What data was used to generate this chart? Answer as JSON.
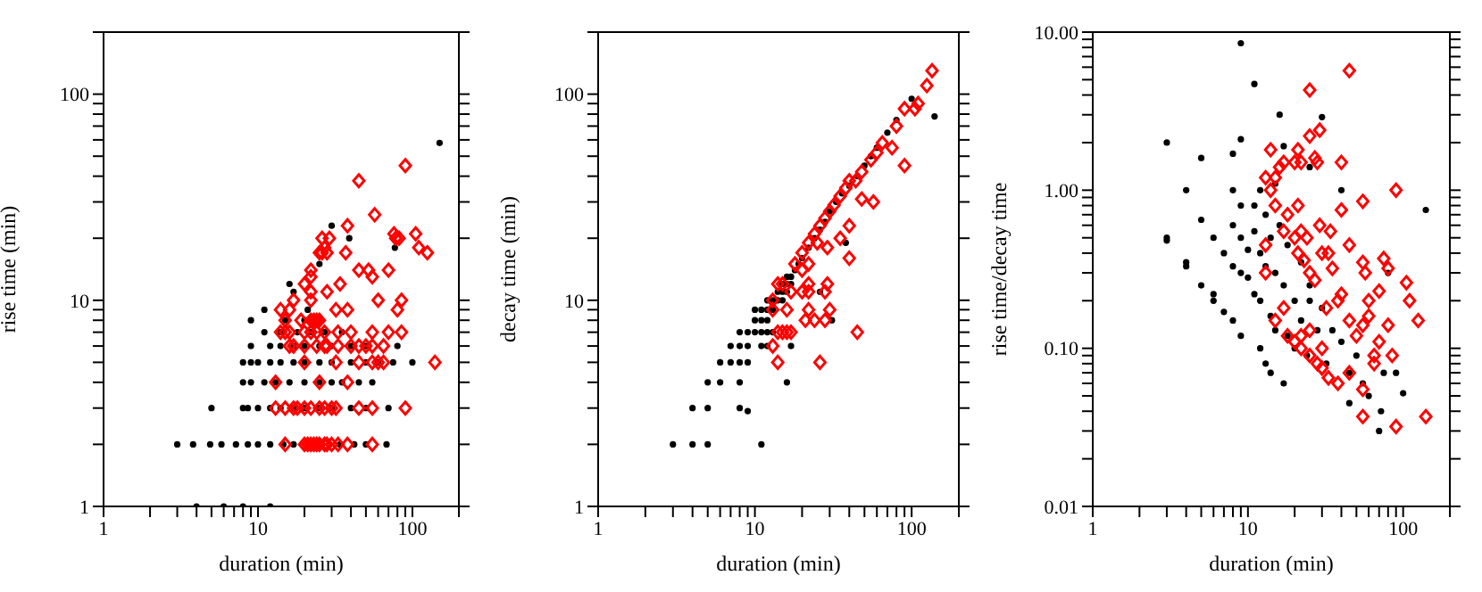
{
  "chart_data": [
    {
      "type": "scatter",
      "xlabel": "duration (min)",
      "ylabel": "rise time (min)",
      "log": "xy",
      "xlim": [
        1,
        200
      ],
      "ylim": [
        1,
        200
      ],
      "xticks": [
        1,
        {
          "value": 2,
          "label": null
        },
        {
          "value": 3,
          "label": null
        },
        {
          "value": 4,
          "label": null
        },
        {
          "value": 5,
          "label": null
        },
        {
          "value": 6,
          "label": null
        },
        {
          "value": 7,
          "label": null
        },
        {
          "value": 8,
          "label": null
        },
        {
          "value": 9,
          "label": null
        },
        10,
        {
          "value": 20,
          "label": null
        },
        {
          "value": 30,
          "label": null
        },
        {
          "value": 40,
          "label": null
        },
        {
          "value": 50,
          "label": null
        },
        {
          "value": 60,
          "label": null
        },
        {
          "value": 70,
          "label": null
        },
        {
          "value": 80,
          "label": null
        },
        {
          "value": 90,
          "label": null
        },
        100,
        {
          "value": 200,
          "label": null
        }
      ],
      "yticks": [
        1,
        {
          "value": 2,
          "label": null
        },
        {
          "value": 3,
          "label": null
        },
        {
          "value": 4,
          "label": null
        },
        {
          "value": 5,
          "label": null
        },
        {
          "value": 6,
          "label": null
        },
        {
          "value": 7,
          "label": null
        },
        {
          "value": 8,
          "label": null
        },
        {
          "value": 9,
          "label": null
        },
        10,
        {
          "value": 20,
          "label": null
        },
        {
          "value": 30,
          "label": null
        },
        {
          "value": 40,
          "label": null
        },
        {
          "value": 50,
          "label": null
        },
        {
          "value": 60,
          "label": null
        },
        {
          "value": 70,
          "label": null
        },
        {
          "value": 80,
          "label": null
        },
        {
          "value": 90,
          "label": null
        },
        100,
        {
          "value": 200,
          "label": null
        }
      ],
      "series": [
        {
          "color": "#000000",
          "marker": "circle",
          "x": [
            4,
            6,
            8,
            12,
            3,
            3.8,
            4.9,
            5.8,
            7.2,
            8.6,
            10,
            12,
            14.6,
            17,
            34,
            42,
            50,
            68,
            5,
            8,
            8.6,
            10,
            12,
            14,
            17,
            20,
            25,
            30,
            40,
            50,
            70,
            8,
            9,
            11,
            13,
            16,
            20,
            25,
            30,
            35,
            45,
            55,
            8,
            9,
            10,
            12,
            14,
            17,
            20,
            25,
            30,
            40,
            50,
            60,
            75,
            100,
            9,
            12,
            14,
            17,
            20,
            25,
            30,
            40,
            50,
            80,
            11,
            14,
            18,
            22,
            27,
            35,
            9,
            15,
            20,
            11,
            21,
            16,
            17,
            25,
            77,
            39,
            30,
            150
          ],
          "values": [
            1,
            1,
            1,
            1,
            2,
            2,
            2,
            2,
            2,
            2,
            2,
            2,
            2,
            2,
            2,
            2,
            2,
            2,
            3,
            3,
            3,
            3,
            3,
            3,
            3,
            3,
            3,
            3,
            3,
            3,
            3,
            4,
            4,
            4,
            4,
            4,
            4,
            4,
            4,
            4,
            4,
            4,
            5,
            5,
            5,
            5,
            5,
            5,
            5,
            5,
            5,
            5,
            5,
            5,
            5,
            5,
            6,
            6,
            6,
            6,
            6,
            6,
            6,
            6,
            6,
            6,
            7,
            7,
            7,
            7,
            7,
            7,
            8,
            8,
            8,
            9,
            9,
            12,
            11,
            15,
            18,
            20,
            23,
            58
          ]
        },
        {
          "color": "#ff0000",
          "marker": "diamond",
          "x": [
            15,
            20,
            21,
            22,
            23,
            24,
            25,
            27,
            28,
            30,
            33,
            38,
            55,
            13,
            15,
            17,
            18,
            20,
            22,
            25,
            27,
            30,
            32,
            45,
            55,
            90,
            13,
            25,
            38,
            20,
            32,
            45,
            55,
            60,
            65,
            140,
            16,
            17,
            20,
            24,
            27,
            28,
            33,
            40,
            45,
            50,
            55,
            65,
            14,
            15,
            16,
            20,
            22,
            24,
            27,
            33,
            40,
            55,
            70,
            85,
            15,
            19,
            22,
            23,
            24,
            25,
            14,
            16,
            32,
            38,
            80,
            17,
            22,
            60,
            85,
            22,
            28,
            20,
            34,
            22,
            55,
            22,
            45,
            52,
            70,
            25,
            26,
            28,
            37,
            125,
            27,
            110,
            26,
            29,
            78,
            82,
            76,
            105,
            38,
            57,
            45,
            90
          ],
          "values": [
            2,
            2,
            2,
            2,
            2,
            2,
            2,
            2,
            2,
            2,
            2,
            2,
            2,
            3,
            3,
            3,
            3,
            3,
            3,
            3,
            3,
            3,
            3,
            3,
            3,
            3,
            4,
            4,
            4,
            5,
            5,
            5,
            5,
            5,
            5,
            5,
            6,
            6,
            6,
            6,
            6,
            6,
            6,
            6,
            6,
            6,
            6,
            6,
            7,
            7,
            7,
            7,
            7,
            7,
            7,
            7,
            7,
            7,
            7,
            7,
            8,
            8,
            8,
            8,
            8,
            8,
            9,
            9,
            9,
            9,
            9,
            10,
            10,
            10,
            10,
            11,
            11,
            12,
            12,
            13,
            13,
            14,
            14,
            14,
            14,
            17,
            17,
            17,
            17,
            17,
            18,
            18,
            20,
            20,
            20,
            20,
            21,
            21,
            23,
            26,
            38,
            45
          ]
        }
      ]
    },
    {
      "type": "scatter",
      "xlabel": "duration (min)",
      "ylabel": "decay time (min)",
      "log": "xy",
      "xlim": [
        1,
        200
      ],
      "ylim": [
        1,
        200
      ],
      "xticks": [
        1,
        {
          "value": 2,
          "label": null
        },
        {
          "value": 3,
          "label": null
        },
        {
          "value": 4,
          "label": null
        },
        {
          "value": 5,
          "label": null
        },
        {
          "value": 6,
          "label": null
        },
        {
          "value": 7,
          "label": null
        },
        {
          "value": 8,
          "label": null
        },
        {
          "value": 9,
          "label": null
        },
        10,
        {
          "value": 20,
          "label": null
        },
        {
          "value": 30,
          "label": null
        },
        {
          "value": 40,
          "label": null
        },
        {
          "value": 50,
          "label": null
        },
        {
          "value": 60,
          "label": null
        },
        {
          "value": 70,
          "label": null
        },
        {
          "value": 80,
          "label": null
        },
        {
          "value": 90,
          "label": null
        },
        100,
        {
          "value": 200,
          "label": null
        }
      ],
      "yticks": [
        1,
        {
          "value": 2,
          "label": null
        },
        {
          "value": 3,
          "label": null
        },
        {
          "value": 4,
          "label": null
        },
        {
          "value": 5,
          "label": null
        },
        {
          "value": 6,
          "label": null
        },
        {
          "value": 7,
          "label": null
        },
        {
          "value": 8,
          "label": null
        },
        {
          "value": 9,
          "label": null
        },
        10,
        {
          "value": 20,
          "label": null
        },
        {
          "value": 30,
          "label": null
        },
        {
          "value": 40,
          "label": null
        },
        {
          "value": 50,
          "label": null
        },
        {
          "value": 60,
          "label": null
        },
        {
          "value": 70,
          "label": null
        },
        {
          "value": 80,
          "label": null
        },
        {
          "value": 90,
          "label": null
        },
        100,
        {
          "value": 200,
          "label": null
        }
      ],
      "series": [
        {
          "color": "#000000",
          "marker": "circle",
          "x": [
            3,
            4,
            5,
            11,
            4,
            5,
            8,
            9,
            5,
            6,
            8,
            16,
            6,
            7,
            8,
            9,
            7,
            8,
            9,
            11,
            12,
            17,
            8,
            9,
            10,
            11,
            12,
            13,
            10,
            11,
            12,
            31,
            10,
            11,
            12,
            13,
            12,
            13,
            14,
            15,
            14,
            15,
            16,
            26,
            15,
            16,
            17,
            16,
            17,
            18,
            19,
            20,
            22,
            38,
            24,
            26,
            28,
            30,
            33,
            36,
            40,
            45,
            50,
            55,
            60,
            70,
            80,
            100,
            140
          ],
          "values": [
            2,
            2,
            2,
            2,
            3,
            3,
            3,
            2.9,
            4,
            4,
            4,
            4,
            5,
            5,
            5,
            5,
            6,
            6,
            6,
            6,
            6,
            6,
            7,
            7,
            7,
            7,
            7,
            7,
            8,
            8,
            8,
            8,
            9,
            9,
            9,
            9,
            10,
            10,
            10,
            10,
            11,
            11,
            11,
            11,
            12,
            12,
            12,
            13,
            13,
            14,
            15,
            16,
            18,
            19,
            20,
            22,
            24,
            27,
            30,
            33,
            36,
            40,
            45,
            50,
            55,
            65,
            75,
            95,
            78
          ]
        },
        {
          "color": "#ff0000",
          "marker": "diamond",
          "x": [
            13,
            14,
            26,
            45,
            14,
            15,
            16,
            17,
            13,
            16,
            22,
            30,
            13,
            14,
            15,
            22,
            17,
            20,
            22,
            28,
            29,
            21,
            24,
            28,
            18,
            20,
            22,
            24,
            26,
            28,
            30,
            32,
            35,
            38,
            25,
            29,
            35,
            40,
            40,
            48,
            44,
            48,
            55,
            60,
            65,
            57,
            75,
            80,
            90,
            90,
            105,
            110,
            125,
            135,
            40,
            22,
            20
          ],
          "values": [
            6,
            5,
            5,
            7,
            7,
            7,
            7,
            7,
            9,
            9,
            9,
            9,
            10,
            12,
            12,
            11,
            11,
            11,
            12,
            11,
            12,
            8,
            8,
            8,
            15,
            17,
            19,
            21,
            23,
            25,
            27,
            29,
            32,
            35,
            19,
            18,
            20,
            16,
            23,
            31,
            38,
            42,
            48,
            52,
            58,
            30,
            55,
            70,
            45,
            85,
            85,
            90,
            110,
            130,
            38,
            15,
            14
          ]
        }
      ]
    },
    {
      "type": "scatter",
      "xlabel": "duration (min)",
      "ylabel": "rise time/decay time",
      "log": "xy",
      "xlim": [
        1,
        200
      ],
      "ylim": [
        0.01,
        10
      ],
      "xticks": [
        1,
        {
          "value": 2,
          "label": null
        },
        {
          "value": 3,
          "label": null
        },
        {
          "value": 4,
          "label": null
        },
        {
          "value": 5,
          "label": null
        },
        {
          "value": 6,
          "label": null
        },
        {
          "value": 7,
          "label": null
        },
        {
          "value": 8,
          "label": null
        },
        {
          "value": 9,
          "label": null
        },
        10,
        {
          "value": 20,
          "label": null
        },
        {
          "value": 30,
          "label": null
        },
        {
          "value": 40,
          "label": null
        },
        {
          "value": 50,
          "label": null
        },
        {
          "value": 60,
          "label": null
        },
        {
          "value": 70,
          "label": null
        },
        {
          "value": 80,
          "label": null
        },
        {
          "value": 90,
          "label": null
        },
        100,
        {
          "value": 200,
          "label": null
        }
      ],
      "yticks": [
        {
          "value": 0.01,
          "label": "0.01"
        },
        {
          "value": 0.02,
          "label": null
        },
        {
          "value": 0.03,
          "label": null
        },
        {
          "value": 0.04,
          "label": null
        },
        {
          "value": 0.05,
          "label": null
        },
        {
          "value": 0.06,
          "label": null
        },
        {
          "value": 0.07,
          "label": null
        },
        {
          "value": 0.08,
          "label": null
        },
        {
          "value": 0.09,
          "label": null
        },
        {
          "value": 0.1,
          "label": "0.10"
        },
        {
          "value": 0.2,
          "label": null
        },
        {
          "value": 0.3,
          "label": null
        },
        {
          "value": 0.4,
          "label": null
        },
        {
          "value": 0.5,
          "label": null
        },
        {
          "value": 0.6,
          "label": null
        },
        {
          "value": 0.7,
          "label": null
        },
        {
          "value": 0.8,
          "label": null
        },
        {
          "value": 0.9,
          "label": null
        },
        {
          "value": 1,
          "label": "1.00"
        },
        {
          "value": 2,
          "label": null
        },
        {
          "value": 3,
          "label": null
        },
        {
          "value": 4,
          "label": null
        },
        {
          "value": 5,
          "label": null
        },
        {
          "value": 6,
          "label": null
        },
        {
          "value": 7,
          "label": null
        },
        {
          "value": 8,
          "label": null
        },
        {
          "value": 9,
          "label": null
        },
        {
          "value": 10,
          "label": "10.00"
        }
      ],
      "series": [
        {
          "color": "#000000",
          "marker": "circle",
          "x": [
            3,
            3,
            3,
            4,
            4,
            4,
            5,
            5,
            5,
            6,
            6,
            6,
            7,
            7,
            8,
            8,
            8,
            8,
            8,
            9,
            9,
            9,
            9,
            9,
            9,
            10,
            10,
            11,
            11,
            11,
            11,
            12,
            12,
            12,
            12,
            13,
            13,
            13,
            14,
            14,
            14,
            15,
            15,
            15,
            16,
            16,
            17,
            17,
            17,
            18,
            18,
            20,
            20,
            22,
            22,
            24,
            25,
            25,
            25,
            28,
            30,
            30,
            32,
            35,
            40,
            40,
            45,
            45,
            50,
            55,
            60,
            70,
            72,
            75,
            80,
            90,
            100,
            140
          ],
          "values": [
            2.0,
            0.5,
            0.48,
            1.0,
            0.35,
            0.33,
            1.6,
            0.65,
            0.25,
            0.5,
            0.22,
            0.2,
            0.4,
            0.17,
            1.7,
            1.0,
            0.6,
            0.33,
            0.15,
            8.5,
            2.1,
            0.8,
            0.5,
            0.3,
            0.12,
            0.42,
            0.28,
            4.7,
            0.8,
            0.55,
            0.22,
            1.0,
            0.4,
            0.2,
            0.1,
            0.7,
            0.33,
            0.08,
            0.5,
            0.16,
            0.07,
            1.1,
            0.3,
            0.13,
            3.0,
            0.6,
            1.9,
            0.25,
            0.06,
            0.45,
            0.12,
            0.2,
            0.1,
            0.35,
            0.15,
            0.09,
            1.4,
            0.25,
            0.2,
            0.13,
            2.9,
            0.18,
            0.08,
            0.13,
            1.0,
            0.11,
            0.045,
            0.07,
            0.09,
            0.06,
            0.05,
            0.03,
            0.04,
            0.07,
            0.3,
            0.07,
            0.052,
            0.75
          ]
        },
        {
          "color": "#ff0000",
          "marker": "diamond",
          "x": [
            14,
            14,
            13,
            15,
            16,
            17,
            15,
            18,
            13,
            13,
            17,
            20,
            21,
            22,
            21,
            25,
            29,
            27,
            28,
            25,
            45,
            40,
            40,
            55,
            90,
            20,
            22,
            24,
            21,
            23,
            25,
            27,
            29,
            30,
            33,
            35,
            34,
            45,
            55,
            57,
            40,
            38,
            45,
            50,
            55,
            60,
            60,
            70,
            75,
            80,
            80,
            70,
            65,
            65,
            105,
            110,
            125,
            85,
            15,
            17,
            18,
            20,
            22,
            25,
            28,
            30,
            33,
            38,
            45,
            55,
            55,
            90,
            140,
            25,
            30,
            22,
            32
          ],
          "values": [
            1.8,
            1.0,
            1.2,
            1.2,
            1.4,
            1.5,
            0.8,
            0.7,
            0.45,
            0.3,
            0.55,
            1.5,
            1.8,
            1.5,
            0.8,
            2.2,
            2.4,
            1.6,
            1.5,
            4.3,
            5.7,
            1.5,
            0.75,
            0.85,
            1.0,
            0.5,
            0.55,
            0.5,
            0.4,
            0.36,
            0.3,
            0.27,
            0.6,
            0.4,
            0.4,
            0.32,
            0.55,
            0.45,
            0.35,
            0.3,
            0.22,
            0.2,
            0.15,
            0.12,
            0.14,
            0.2,
            0.16,
            0.23,
            0.37,
            0.32,
            0.14,
            0.11,
            0.09,
            0.08,
            0.26,
            0.2,
            0.15,
            0.09,
            0.15,
            0.18,
            0.12,
            0.11,
            0.1,
            0.09,
            0.08,
            0.075,
            0.065,
            0.06,
            0.07,
            0.055,
            0.037,
            0.032,
            0.037,
            0.13,
            0.1,
            0.12,
            0.18
          ]
        }
      ]
    }
  ]
}
